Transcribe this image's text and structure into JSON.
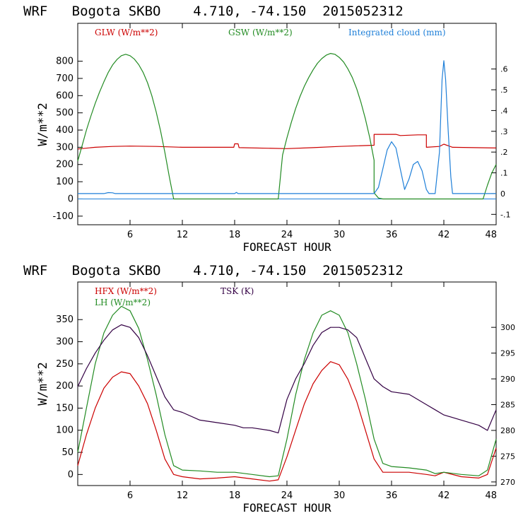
{
  "chart_data": [
    {
      "type": "line",
      "title": "WRF   Bogota SKBO    4.710, -74.150  2015052312",
      "xlabel": "FORECAST HOUR",
      "ylabel": "W/m**2",
      "xlim": [
        0,
        48
      ],
      "ylim": [
        -150,
        1020
      ],
      "xticks": [
        6,
        12,
        18,
        24,
        30,
        36,
        42,
        48
      ],
      "yticks": [
        -100,
        0,
        100,
        200,
        300,
        400,
        500,
        600,
        700,
        800
      ],
      "y2lim": [
        -0.15,
        0.82
      ],
      "y2ticks": [
        -0.1,
        0,
        0.1,
        0.2,
        0.3,
        0.4,
        0.5,
        0.6
      ],
      "y2ticklabels": [
        "-.1",
        "0",
        ".1",
        ".2",
        ".3",
        ".4",
        ".5",
        ".6"
      ],
      "legend_position": "top",
      "series": [
        {
          "name": "GLW (W/m**2)",
          "color": "#cc0000",
          "axis": "left",
          "points": [
            [
              0,
              290
            ],
            [
              2,
              300
            ],
            [
              4,
              305
            ],
            [
              6,
              307
            ],
            [
              9,
              305
            ],
            [
              12,
              300
            ],
            [
              17.9,
              300
            ],
            [
              18,
              320
            ],
            [
              18.4,
              320
            ],
            [
              18.5,
              298
            ],
            [
              24,
              292
            ],
            [
              27,
              298
            ],
            [
              30,
              305
            ],
            [
              34,
              312
            ],
            [
              34,
              375
            ],
            [
              36.5,
              375
            ],
            [
              37,
              368
            ],
            [
              39,
              372
            ],
            [
              40,
              372
            ],
            [
              40,
              300
            ],
            [
              41.5,
              305
            ],
            [
              42,
              318
            ],
            [
              43,
              300
            ],
            [
              48,
              296
            ]
          ]
        },
        {
          "name": "GSW (W/m**2)",
          "color": "#228b22",
          "axis": "left",
          "points": [
            [
              0,
              220
            ],
            [
              0.5,
              310
            ],
            [
              1,
              400
            ],
            [
              1.5,
              480
            ],
            [
              2,
              555
            ],
            [
              2.5,
              620
            ],
            [
              3,
              680
            ],
            [
              3.5,
              735
            ],
            [
              4,
              778
            ],
            [
              4.5,
              810
            ],
            [
              5,
              832
            ],
            [
              5.5,
              840
            ],
            [
              6,
              832
            ],
            [
              6.5,
              812
            ],
            [
              7,
              780
            ],
            [
              7.5,
              735
            ],
            [
              8,
              675
            ],
            [
              8.5,
              600
            ],
            [
              9,
              505
            ],
            [
              9.5,
              395
            ],
            [
              10,
              270
            ],
            [
              10.5,
              130
            ],
            [
              11,
              0
            ],
            [
              23,
              0
            ],
            [
              23.5,
              255
            ],
            [
              24,
              355
            ],
            [
              24.5,
              445
            ],
            [
              25,
              525
            ],
            [
              25.5,
              595
            ],
            [
              26,
              655
            ],
            [
              26.5,
              705
            ],
            [
              27,
              750
            ],
            [
              27.5,
              788
            ],
            [
              28,
              815
            ],
            [
              28.5,
              835
            ],
            [
              29,
              845
            ],
            [
              29.5,
              840
            ],
            [
              30,
              822
            ],
            [
              30.5,
              795
            ],
            [
              31,
              755
            ],
            [
              31.5,
              705
            ],
            [
              32,
              640
            ],
            [
              32.5,
              560
            ],
            [
              33,
              465
            ],
            [
              33.5,
              355
            ],
            [
              34,
              225
            ],
            [
              34,
              35
            ],
            [
              34.5,
              5
            ],
            [
              35,
              0
            ],
            [
              46.5,
              0
            ],
            [
              47,
              80
            ],
            [
              47.5,
              150
            ],
            [
              48,
              200
            ]
          ]
        },
        {
          "name": "Integrated cloud (mm)",
          "color": "#1e7fd8",
          "axis": "right",
          "points": [
            [
              0,
              0
            ],
            [
              3,
              0
            ],
            [
              3.5,
              0.005
            ],
            [
              4,
              0.004
            ],
            [
              4.3,
              0
            ],
            [
              18,
              0
            ],
            [
              18.2,
              0.006
            ],
            [
              18.4,
              0
            ],
            [
              34,
              0
            ],
            [
              34.5,
              0.03
            ],
            [
              35,
              0.12
            ],
            [
              35.5,
              0.21
            ],
            [
              36,
              0.25
            ],
            [
              36.5,
              0.22
            ],
            [
              37,
              0.12
            ],
            [
              37.5,
              0.02
            ],
            [
              38,
              0.07
            ],
            [
              38.5,
              0.14
            ],
            [
              39,
              0.155
            ],
            [
              39.5,
              0.11
            ],
            [
              40,
              0.02
            ],
            [
              40.3,
              0
            ],
            [
              41,
              0
            ],
            [
              41.5,
              0.2
            ],
            [
              41.8,
              0.55
            ],
            [
              42,
              0.64
            ],
            [
              42.2,
              0.55
            ],
            [
              42.5,
              0.3
            ],
            [
              42.8,
              0.08
            ],
            [
              43,
              0
            ],
            [
              48,
              0
            ]
          ]
        }
      ]
    },
    {
      "type": "line",
      "title": "WRF   Bogota SKBO    4.710, -74.150  2015052312",
      "xlabel": "FORECAST HOUR",
      "ylabel": "W/m**2",
      "xlim": [
        0,
        48
      ],
      "ylim": [
        -25,
        435
      ],
      "xticks": [
        6,
        12,
        18,
        24,
        30,
        36,
        42,
        48
      ],
      "yticks": [
        0,
        50,
        100,
        150,
        200,
        250,
        300,
        350
      ],
      "y2lim": [
        269.3,
        308.8
      ],
      "y2ticks": [
        270,
        275,
        280,
        285,
        290,
        295,
        300
      ],
      "y2ticklabels": [
        "270",
        "275",
        "280",
        "285",
        "290",
        "295",
        "300"
      ],
      "legend_position": "top",
      "series": [
        {
          "name": "HFX (W/m**2)",
          "color": "#cc0000",
          "axis": "left",
          "points": [
            [
              0,
              20
            ],
            [
              1,
              90
            ],
            [
              2,
              150
            ],
            [
              3,
              195
            ],
            [
              4,
              220
            ],
            [
              5,
              232
            ],
            [
              6,
              228
            ],
            [
              7,
              200
            ],
            [
              8,
              160
            ],
            [
              9,
              100
            ],
            [
              10,
              35
            ],
            [
              11,
              0
            ],
            [
              12,
              -5
            ],
            [
              14,
              -10
            ],
            [
              16,
              -8
            ],
            [
              18,
              -5
            ],
            [
              20,
              -10
            ],
            [
              22,
              -15
            ],
            [
              23,
              -12
            ],
            [
              24,
              40
            ],
            [
              25,
              100
            ],
            [
              26,
              160
            ],
            [
              27,
              205
            ],
            [
              28,
              235
            ],
            [
              29,
              255
            ],
            [
              30,
              248
            ],
            [
              31,
              215
            ],
            [
              32,
              165
            ],
            [
              33,
              100
            ],
            [
              34,
              35
            ],
            [
              35,
              5
            ],
            [
              36,
              5
            ],
            [
              38,
              5
            ],
            [
              40,
              0
            ],
            [
              41,
              -3
            ],
            [
              42,
              5
            ],
            [
              44,
              -5
            ],
            [
              46,
              -8
            ],
            [
              47,
              0
            ],
            [
              48,
              60
            ]
          ]
        },
        {
          "name": "LH  (W/m**2)",
          "color": "#228b22",
          "axis": "left",
          "points": [
            [
              0,
              50
            ],
            [
              1,
              150
            ],
            [
              2,
              250
            ],
            [
              3,
              320
            ],
            [
              4,
              360
            ],
            [
              5,
              380
            ],
            [
              6,
              370
            ],
            [
              7,
              330
            ],
            [
              8,
              260
            ],
            [
              9,
              180
            ],
            [
              10,
              90
            ],
            [
              11,
              20
            ],
            [
              12,
              10
            ],
            [
              14,
              8
            ],
            [
              16,
              5
            ],
            [
              18,
              5
            ],
            [
              20,
              0
            ],
            [
              22,
              -5
            ],
            [
              23,
              -3
            ],
            [
              24,
              80
            ],
            [
              25,
              180
            ],
            [
              26,
              260
            ],
            [
              27,
              320
            ],
            [
              28,
              360
            ],
            [
              29,
              370
            ],
            [
              30,
              360
            ],
            [
              31,
              320
            ],
            [
              32,
              250
            ],
            [
              33,
              170
            ],
            [
              34,
              80
            ],
            [
              35,
              25
            ],
            [
              36,
              18
            ],
            [
              38,
              15
            ],
            [
              40,
              10
            ],
            [
              41,
              2
            ],
            [
              42,
              5
            ],
            [
              44,
              0
            ],
            [
              46,
              -3
            ],
            [
              47,
              10
            ],
            [
              48,
              80
            ]
          ]
        },
        {
          "name": "TSK (K)",
          "color": "#330044",
          "axis": "right",
          "points": [
            [
              0,
              288.5
            ],
            [
              1,
              292
            ],
            [
              2,
              295
            ],
            [
              3,
              297.5
            ],
            [
              4,
              299.5
            ],
            [
              5,
              300.5
            ],
            [
              6,
              300
            ],
            [
              7,
              298
            ],
            [
              8,
              294.5
            ],
            [
              9,
              290.5
            ],
            [
              10,
              286.5
            ],
            [
              11,
              284
            ],
            [
              12,
              283.5
            ],
            [
              14,
              282
            ],
            [
              16,
              281.5
            ],
            [
              18,
              281
            ],
            [
              19,
              280.5
            ],
            [
              20,
              280.5
            ],
            [
              22,
              280
            ],
            [
              23,
              279.5
            ],
            [
              24,
              286
            ],
            [
              25,
              290
            ],
            [
              26,
              293
            ],
            [
              27,
              296.5
            ],
            [
              28,
              299
            ],
            [
              29,
              300
            ],
            [
              30,
              300
            ],
            [
              31,
              299.5
            ],
            [
              32,
              298
            ],
            [
              33,
              294
            ],
            [
              34,
              290
            ],
            [
              35,
              288.5
            ],
            [
              36,
              287.5
            ],
            [
              38,
              287
            ],
            [
              40,
              285
            ],
            [
              41,
              284
            ],
            [
              42,
              283
            ],
            [
              44,
              282
            ],
            [
              46,
              281
            ],
            [
              47,
              280
            ],
            [
              48,
              284
            ]
          ]
        }
      ]
    }
  ]
}
